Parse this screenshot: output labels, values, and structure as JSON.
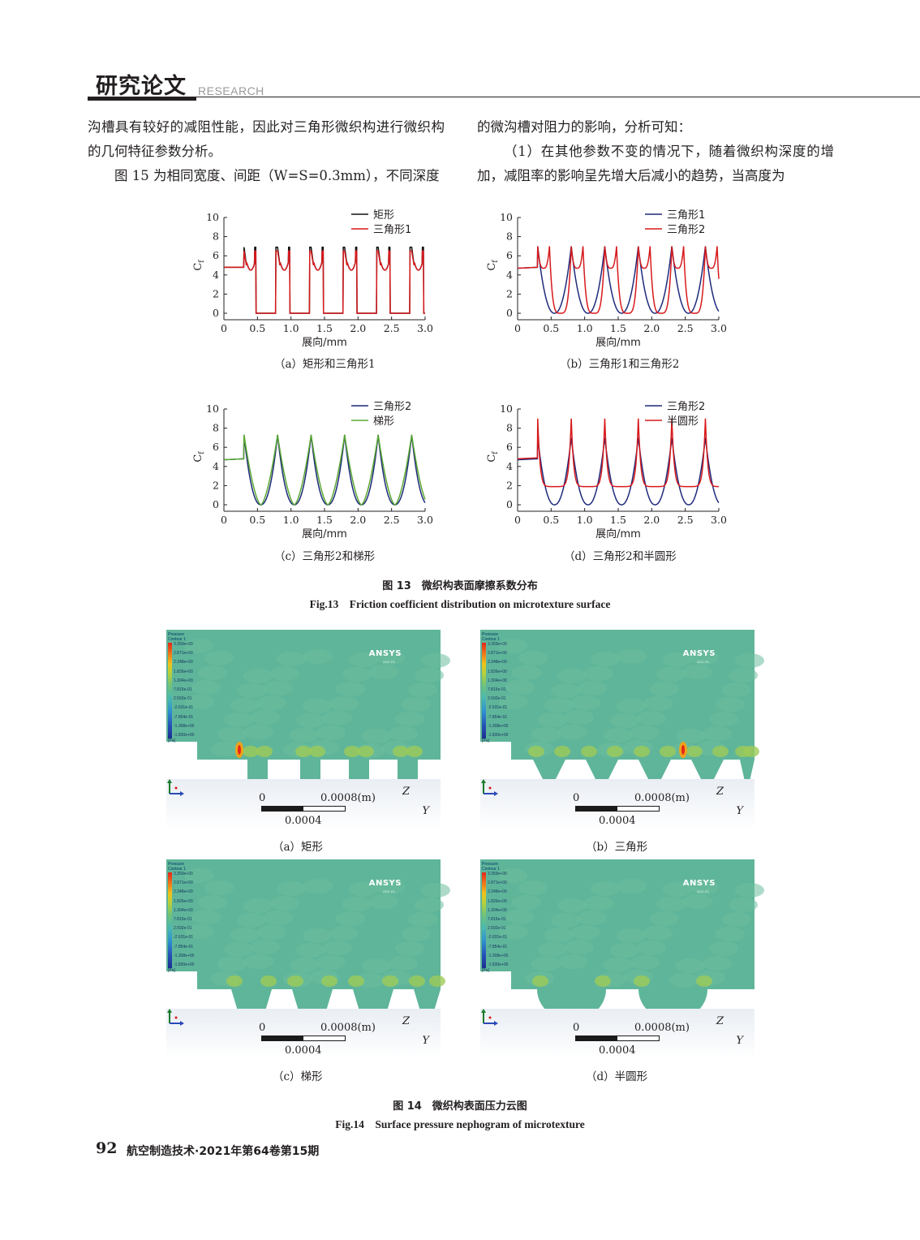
{
  "header": {
    "section_cn": "研究论文",
    "section_en": "RESEARCH"
  },
  "body": {
    "left_col": [
      "沟槽具有较好的减阻性能，因此对三角形微织构进行微织构的几何特征参数分析。",
      "图 15 为相同宽度、间距（W=S=0.3mm），不同深度"
    ],
    "right_col": [
      "的微沟槽对阻力的影响，分析可知：",
      "（1）在其他参数不变的情况下，随着微织构深度的增加，减阻率的影响呈先增大后减小的趋势，当高度为"
    ]
  },
  "fig13": {
    "caption_cn": "图 13　微织构表面摩擦系数分布",
    "caption_en": "Fig.13　Friction coefficient distribution on microtexture surface",
    "xlabel": "展向/mm",
    "ylabel": "Cf",
    "xticks": [
      "0",
      "0.5",
      "1.0",
      "1.5",
      "2.0",
      "2.5",
      "3.0"
    ],
    "yticks": [
      "0",
      "2",
      "4",
      "6",
      "8",
      "10"
    ]
  },
  "chart_data": [
    {
      "type": "line",
      "caption": "（a）矩形和三角形1",
      "xlabel": "展向/mm",
      "ylabel": "Cf",
      "xlim": [
        0,
        3.0
      ],
      "ylim": [
        0,
        10
      ],
      "series": [
        {
          "name": "矩形",
          "color": "#111111",
          "shape": "rect",
          "peak": 6.9,
          "base": 4.8,
          "floor": 0.0,
          "x": [
            0,
            0.3,
            0.35,
            0.65,
            0.8,
            1.1,
            1.25,
            1.55,
            1.7,
            2.0,
            2.15,
            2.45,
            2.6,
            2.9,
            3.0
          ]
        },
        {
          "name": "三角形1",
          "color": "#d7191c",
          "shape": "rect",
          "peak": 6.5,
          "base": 4.8,
          "floor": 0.0,
          "x": [
            0,
            0.3,
            0.35,
            0.65,
            0.8,
            1.1,
            1.25,
            1.55,
            1.7,
            2.0,
            2.15,
            2.45,
            2.6,
            2.9,
            3.0
          ]
        }
      ]
    },
    {
      "type": "line",
      "caption": "（b）三角形1和三角形2",
      "xlabel": "展向/mm",
      "ylabel": "Cf",
      "xlim": [
        0,
        3.0
      ],
      "ylim": [
        0,
        10
      ],
      "series": [
        {
          "name": "三角形1",
          "color": "#1f2a7a",
          "shape": "v",
          "peak": 7.0,
          "base": 4.7,
          "floor": 0.0
        },
        {
          "name": "三角形2",
          "color": "#d7191c",
          "shape": "v2",
          "peak": 7.0,
          "base": 4.7,
          "floor": 0.0
        }
      ]
    },
    {
      "type": "line",
      "caption": "（c）三角形2和梯形",
      "xlabel": "展向/mm",
      "ylabel": "Cf",
      "xlim": [
        0,
        3.0
      ],
      "ylim": [
        0,
        10
      ],
      "series": [
        {
          "name": "三角形2",
          "color": "#1f2a7a",
          "shape": "v",
          "peak": 7.3,
          "base": 4.7,
          "floor": 0.0
        },
        {
          "name": "梯形",
          "color": "#5aa832",
          "shape": "u",
          "peak": 7.3,
          "base": 4.7,
          "floor": 0.0
        }
      ]
    },
    {
      "type": "line",
      "caption": "（d）三角形2和半圆形",
      "xlabel": "展向/mm",
      "ylabel": "Cf",
      "xlim": [
        0,
        3.0
      ],
      "ylim": [
        0,
        10
      ],
      "series": [
        {
          "name": "三角形2",
          "color": "#1f2a7a",
          "shape": "v",
          "peak": 7.0,
          "base": 4.7,
          "floor": 0.0
        },
        {
          "name": "半圆形",
          "color": "#d7191c",
          "shape": "semi",
          "peak": 9.0,
          "base": 4.8,
          "floor": 1.9
        }
      ]
    }
  ],
  "fig14": {
    "caption_cn": "图 14　微织构表面压力云图",
    "caption_en": "Fig.14　Surface pressure nephogram of microtexture",
    "legend_title": [
      "Pressure",
      "Contour 1"
    ],
    "legend_values": [
      "3.359e+00",
      "2.871e+00",
      "2.348e+00",
      "1.826e+00",
      "1.304e+00",
      "7.815e-01",
      "2.592e-01",
      "-2.631e-01",
      "-7.854e-01",
      "-1.308e+00",
      "-1.830e+00"
    ],
    "legend_unit": "[Pa]",
    "brand": "ANSYS",
    "brand_sub": "2021 R1",
    "scale_left": "0",
    "scale_right": "0.0008(m)",
    "scale_mid": "0.0004",
    "axis_z": "Z",
    "axis_y": "Y",
    "panels": [
      {
        "caption": "（a）矩形",
        "shape": "rect"
      },
      {
        "caption": "（b）三角形",
        "shape": "tri"
      },
      {
        "caption": "（c）梯形",
        "shape": "trap"
      },
      {
        "caption": "（d）半圆形",
        "shape": "semi"
      }
    ]
  },
  "footer": {
    "page": "92",
    "journal": "航空制造技术·2021年第64卷第15期"
  }
}
